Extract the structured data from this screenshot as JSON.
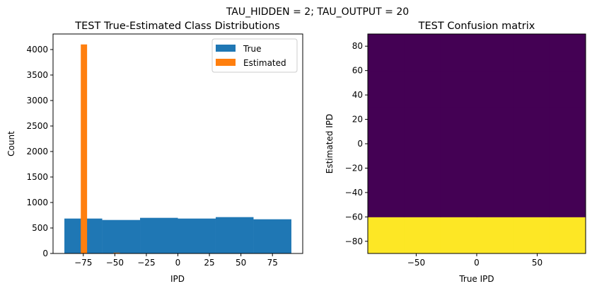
{
  "suptitle": "TAU_HIDDEN = 2; TAU_OUTPUT = 20",
  "chart_data": [
    {
      "type": "bar",
      "title": "TEST True-Estimated Class Distributions",
      "xlabel": "IPD",
      "ylabel": "Count",
      "xlim": [
        -99,
        99
      ],
      "ylim": [
        0,
        4305
      ],
      "xticks": [
        -75,
        -50,
        -25,
        0,
        25,
        50,
        75
      ],
      "xtick_labels": [
        "−75",
        "−50",
        "−25",
        "0",
        "25",
        "50",
        "75"
      ],
      "yticks": [
        0,
        500,
        1000,
        1500,
        2000,
        2500,
        3000,
        3500,
        4000
      ],
      "grid": false,
      "legend": "top-right",
      "series": [
        {
          "name": "True",
          "color": "#1f77b4",
          "bins": [
            [
              -90,
              -60
            ],
            [
              -60,
              -30
            ],
            [
              -30,
              0
            ],
            [
              0,
              30
            ],
            [
              30,
              60
            ],
            [
              60,
              90
            ]
          ],
          "values": [
            685,
            657,
            699,
            685,
            713,
            671
          ]
        },
        {
          "name": "Estimated",
          "color": "#ff7f0e",
          "bins": [
            [
              -77,
              -72
            ],
            [
              -51,
              -46
            ]
          ],
          "values": [
            4100,
            15
          ]
        }
      ]
    },
    {
      "type": "heatmap",
      "title": "TEST Confusion matrix",
      "xlabel": "True IPD",
      "ylabel": "Estimated IPD",
      "xlim": [
        -90,
        90
      ],
      "ylim": [
        -90,
        90
      ],
      "xticks": [
        -50,
        0,
        50
      ],
      "xtick_labels": [
        "−50",
        "0",
        "50"
      ],
      "yticks": [
        -80,
        -60,
        -40,
        -20,
        0,
        20,
        40,
        60,
        80
      ],
      "ytick_labels": [
        "−80",
        "−60",
        "−40",
        "−20",
        "0",
        "20",
        "40",
        "60",
        "80"
      ],
      "colormap": "viridis",
      "row_edges": [
        -90,
        -60,
        -30,
        0,
        30,
        60,
        90
      ],
      "col_edges": [
        -90,
        -60,
        -30,
        0,
        30,
        60,
        90
      ],
      "matrix": [
        [
          1,
          1,
          1,
          1,
          1,
          1
        ],
        [
          0,
          0,
          0,
          0,
          0,
          0
        ],
        [
          0,
          0,
          0,
          0,
          0,
          0
        ],
        [
          0,
          0,
          0,
          0,
          0,
          0
        ],
        [
          0,
          0,
          0,
          0,
          0,
          0
        ],
        [
          0,
          0,
          0,
          0,
          0,
          0
        ]
      ],
      "colors": {
        "low": "#440154",
        "high": "#fde725"
      }
    }
  ]
}
